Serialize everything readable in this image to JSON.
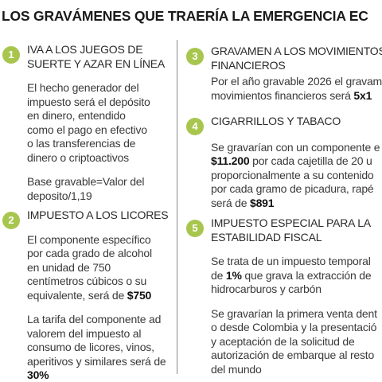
{
  "title": "LOS GRAVÁMENES QUE TRAERÍA LA EMERGENCIA EC",
  "items": [
    {
      "number": "1",
      "heading": [
        "IVA A LOS JUEGOS DE",
        "SUERTE Y AZAR EN LÍNEA"
      ],
      "paragraphs": [
        [
          [
            {
              "text": "El hecho generador del"
            }
          ],
          [
            {
              "text": "impuesto será el depósito"
            }
          ],
          [
            {
              "text": "en dinero, entendido"
            }
          ],
          [
            {
              "text": "como el pago en efectivo"
            }
          ],
          [
            {
              "text": "o las transferencias de"
            }
          ],
          [
            {
              "text": "dinero o criptoactivos"
            }
          ]
        ],
        [
          [
            {
              "text": "Base gravable=Valor del"
            }
          ],
          [
            {
              "text": "deposito/1,19"
            }
          ]
        ]
      ]
    },
    {
      "number": "2",
      "heading": [
        "IMPUESTO A LOS LICORES"
      ],
      "paragraphs": [
        [
          [
            {
              "text": "El componente específico"
            }
          ],
          [
            {
              "text": "por cada grado de alcohol"
            }
          ],
          [
            {
              "text": "en unidad de 750"
            }
          ],
          [
            {
              "text": "centímetros cúbicos o su"
            }
          ],
          [
            {
              "text": "equivalente, será de "
            },
            {
              "text": "$750",
              "bold": true
            }
          ]
        ],
        [
          [
            {
              "text": "La tarifa del componente ad"
            }
          ],
          [
            {
              "text": "valorem del impuesto al"
            }
          ],
          [
            {
              "text": "consumo de licores, vinos,"
            }
          ],
          [
            {
              "text": "aperitivos y similares será de"
            }
          ],
          [
            {
              "text": "30%",
              "bold": true
            }
          ]
        ]
      ]
    },
    {
      "number": "3",
      "heading": [
        "GRAVAMEN A LOS MOVIMIENTOS",
        "FINANCIEROS"
      ],
      "paragraphs": [
        [
          [
            {
              "text": "Por el año gravable 2026 el gravam"
            }
          ],
          [
            {
              "text": "movimientos financieros será "
            },
            {
              "text": "5x1",
              "bold": true
            }
          ]
        ]
      ]
    },
    {
      "number": "4",
      "heading": [
        "CIGARRILLOS Y TABACO"
      ],
      "paragraphs": [
        [
          [
            {
              "text": "Se gravarían con un componente e"
            }
          ],
          [
            {
              "text": "$11.200",
              "bold": true
            },
            {
              "text": " por cada cajetilla de 20 u"
            }
          ],
          [
            {
              "text": "proporcionalmente a su contenido"
            }
          ],
          [
            {
              "text": "por cada gramo de picadura, rapé"
            }
          ],
          [
            {
              "text": "será de "
            },
            {
              "text": "$891",
              "bold": true
            }
          ]
        ]
      ]
    },
    {
      "number": "5",
      "heading": [
        "IMPUESTO ESPECIAL PARA LA",
        "ESTABILIDAD FISCAL"
      ],
      "paragraphs": [
        [
          [
            {
              "text": "Se trata de un impuesto temporal"
            }
          ],
          [
            {
              "text": "de "
            },
            {
              "text": "1%",
              "bold": true
            },
            {
              "text": " que grava la extracción de"
            }
          ],
          [
            {
              "text": "hidrocarburos y carbón"
            }
          ]
        ],
        [
          [
            {
              "text": "Se gravarían la primera venta dent"
            }
          ],
          [
            {
              "text": "o desde Colombia y la presentació"
            }
          ],
          [
            {
              "text": "y aceptación de la solicitud de"
            }
          ],
          [
            {
              "text": "autorización de embarque al resto"
            }
          ],
          [
            {
              "text": "del mundo"
            }
          ]
        ]
      ]
    }
  ]
}
